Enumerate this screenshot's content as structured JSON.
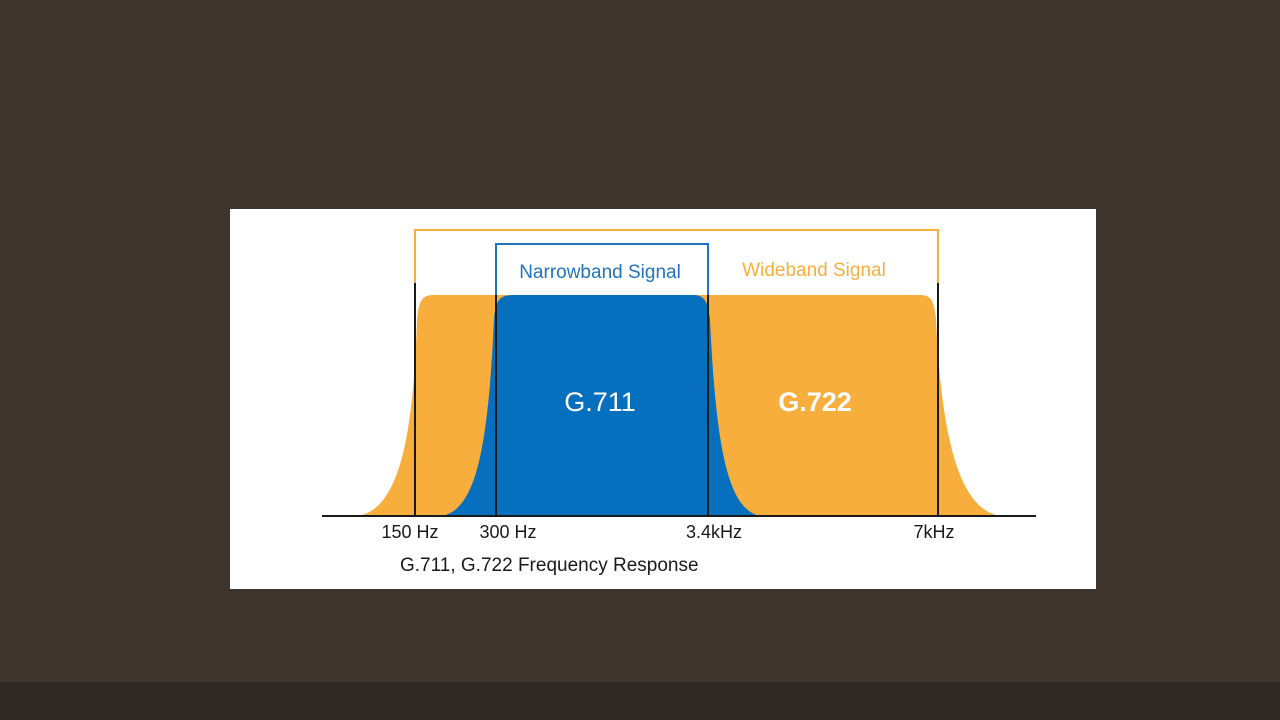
{
  "slide": {
    "background": "#3e352e",
    "footer_bar_color": "#2f2925"
  },
  "figure": {
    "caption": "G.711, G.722 Frequency Response",
    "colors": {
      "wideband": "#f8ae3c",
      "narrowband": "#0670be",
      "narrowband_label": "#1f74bd",
      "wideband_label": "#f8ae3c",
      "axis": "#1a1a1a",
      "codec_label": "#ffffff"
    },
    "brackets": {
      "narrowband_label": "Narrowband Signal",
      "wideband_label": "Wideband Signal"
    },
    "bands": [
      {
        "codec": "G.711",
        "type": "narrowband",
        "low": "300 Hz",
        "high": "3.4kHz"
      },
      {
        "codec": "G.722",
        "type": "wideband",
        "low": "150 Hz",
        "high": "7kHz"
      }
    ],
    "ticks": [
      "150 Hz",
      "300 Hz",
      "3.4kHz",
      "7kHz"
    ]
  }
}
